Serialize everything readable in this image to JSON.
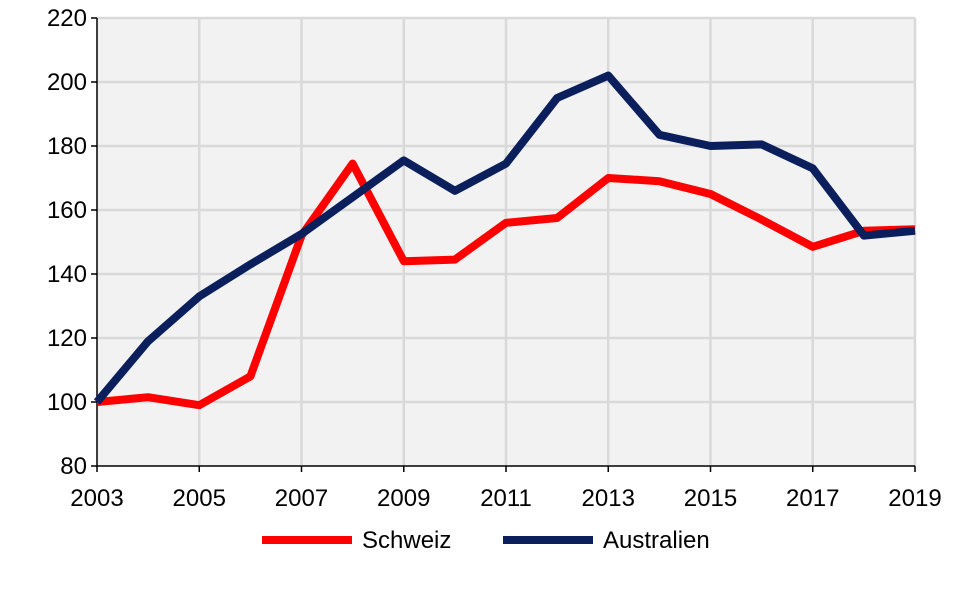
{
  "chart_data": {
    "type": "line",
    "title": "",
    "xlabel": "",
    "ylabel": "",
    "x": [
      2003,
      2004,
      2005,
      2006,
      2007,
      2008,
      2009,
      2010,
      2011,
      2012,
      2013,
      2014,
      2015,
      2016,
      2017,
      2018,
      2019
    ],
    "xlim": [
      2003,
      2019
    ],
    "ylim": [
      80,
      220
    ],
    "x_ticks": [
      "2003",
      "2005",
      "2007",
      "2009",
      "2011",
      "2013",
      "2015",
      "2017",
      "2019"
    ],
    "y_ticks": [
      "80",
      "100",
      "120",
      "140",
      "160",
      "180",
      "200",
      "220"
    ],
    "grid": true,
    "legend_position": "bottom",
    "series": [
      {
        "name": "Schweiz",
        "color": "#ff0000",
        "values": [
          100,
          101.5,
          99,
          108,
          152,
          174.5,
          144,
          144.5,
          156,
          157.5,
          170,
          169,
          165,
          157,
          148.5,
          153.5,
          154
        ]
      },
      {
        "name": "Australien",
        "color": "#0a1f5c",
        "values": [
          100,
          119,
          133,
          143,
          152.5,
          164,
          175.5,
          166,
          174.5,
          195,
          202,
          183.5,
          180,
          180.5,
          173,
          152,
          153.5
        ]
      }
    ]
  }
}
